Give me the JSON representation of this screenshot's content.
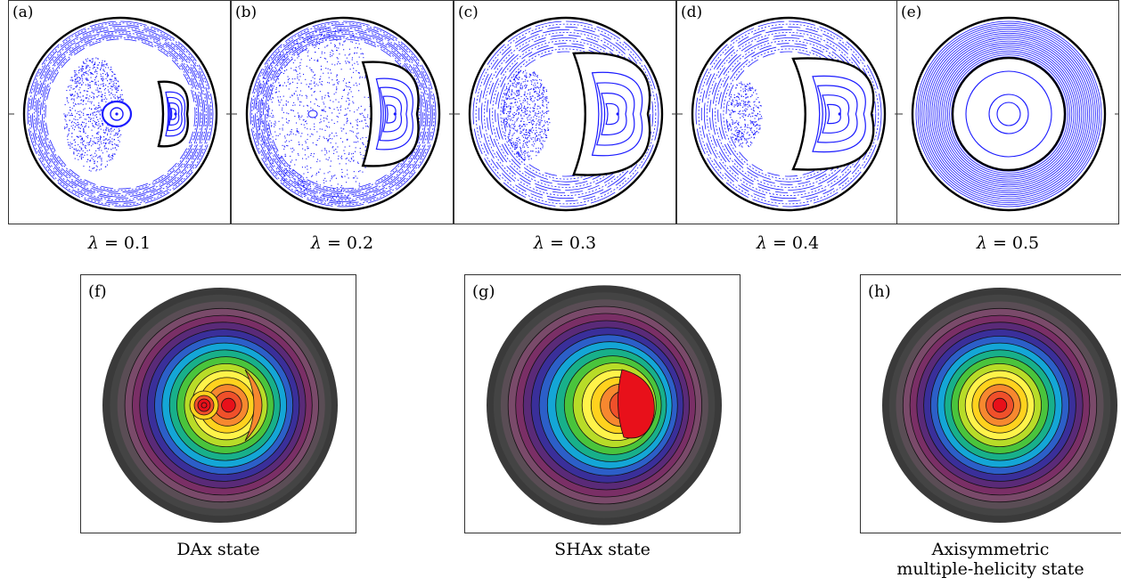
{
  "poincare_panels": [
    {
      "label": "(a)",
      "lambda_text": "= 0.1"
    },
    {
      "label": "(b)",
      "lambda_text": "= 0.2"
    },
    {
      "label": "(c)",
      "lambda_text": "= 0.3"
    },
    {
      "label": "(d)",
      "lambda_text": "= 0.4"
    },
    {
      "label": "(e)",
      "lambda_text": "= 0.5"
    }
  ],
  "lambda_symbol": "λ",
  "contour_panels": [
    {
      "label": "(f)",
      "caption_line1": "DAx state",
      "caption_line2": ""
    },
    {
      "label": "(g)",
      "caption_line1": "SHAx state",
      "caption_line2": ""
    },
    {
      "label": "(h)",
      "caption_line1": "Axisymmetric",
      "caption_line2": "multiple-helicity state"
    }
  ],
  "colors": {
    "poincare_points": "#1a1aff",
    "boundary": "#000000",
    "contour_palette": [
      "#e8101a",
      "#f0502a",
      "#f7882f",
      "#ffd21e",
      "#fff34a",
      "#b8dc28",
      "#4ac43c",
      "#18b08a",
      "#14a6d6",
      "#2c5fc8",
      "#3a2f9a",
      "#5a2a78",
      "#7a2f66",
      "#7a4a6a",
      "#5a4d55",
      "#444444",
      "#3a3a3a"
    ]
  }
}
